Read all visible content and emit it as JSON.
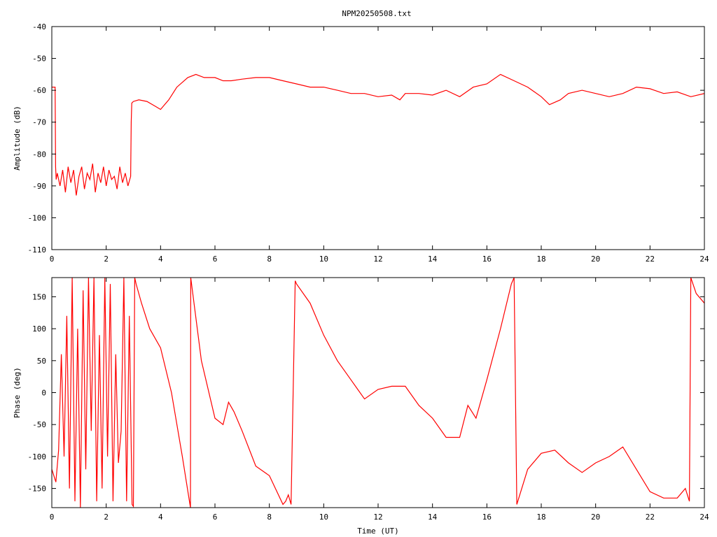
{
  "chart_data": [
    {
      "type": "line",
      "title": "NPM20250508.txt",
      "xlabel": "",
      "ylabel": "Amplitude (dB)",
      "xlim": [
        0,
        24
      ],
      "ylim": [
        -110,
        -40
      ],
      "x_ticks": [
        0,
        2,
        4,
        6,
        8,
        10,
        12,
        14,
        16,
        18,
        20,
        22,
        24
      ],
      "y_ticks": [
        -110,
        -100,
        -90,
        -80,
        -70,
        -60,
        -50,
        -40
      ],
      "grid": false,
      "color": "#ff0000",
      "series": [
        {
          "x": [
            0.0,
            0.1,
            0.12,
            0.14,
            0.16,
            0.2,
            0.3,
            0.4,
            0.5,
            0.6,
            0.7,
            0.8,
            0.9,
            1.0,
            1.1,
            1.2,
            1.3,
            1.4,
            1.5,
            1.6,
            1.7,
            1.8,
            1.9,
            2.0,
            2.1,
            2.2,
            2.3,
            2.4,
            2.5,
            2.6,
            2.7,
            2.8,
            2.9,
            2.92,
            2.94,
            3.0,
            3.2,
            3.5,
            3.8,
            4.0,
            4.3,
            4.6,
            5.0,
            5.3,
            5.6,
            6.0,
            6.3,
            6.6,
            7.0,
            7.5,
            8.0,
            8.5,
            9.0,
            9.5,
            10.0,
            10.5,
            11.0,
            11.5,
            12.0,
            12.5,
            12.8,
            13.0,
            13.5,
            14.0,
            14.5,
            15.0,
            15.5,
            16.0,
            16.5,
            17.0,
            17.5,
            18.0,
            18.3,
            18.7,
            19.0,
            19.5,
            20.0,
            20.5,
            21.0,
            21.5,
            22.0,
            22.5,
            23.0,
            23.5,
            24.0
          ],
          "y": [
            -59,
            -59,
            -59,
            -84,
            -88,
            -86,
            -90,
            -85,
            -92,
            -84,
            -89,
            -85,
            -93,
            -87,
            -84,
            -91,
            -86,
            -88,
            -83,
            -92,
            -86,
            -89,
            -84,
            -90,
            -85,
            -88,
            -87,
            -91,
            -84,
            -89,
            -86,
            -90,
            -87,
            -70,
            -64,
            -63.5,
            -63,
            -63.5,
            -65,
            -66,
            -63,
            -59,
            -56,
            -55,
            -56,
            -56,
            -57,
            -57,
            -56.5,
            -56,
            -56,
            -57,
            -58,
            -59,
            -59,
            -60,
            -61,
            -61,
            -62,
            -61.5,
            -63,
            -61,
            -61,
            -61.5,
            -60,
            -62,
            -59,
            -58,
            -55,
            -57,
            -59,
            -62,
            -64.5,
            -63,
            -61,
            -60,
            -61,
            -62,
            -61,
            -59,
            -59.5,
            -61,
            -60.5,
            -62,
            -61
          ]
        }
      ]
    },
    {
      "type": "line",
      "title": "",
      "xlabel": "Time (UT)",
      "ylabel": "Phase (deg)",
      "xlim": [
        0,
        24
      ],
      "ylim": [
        -180,
        180
      ],
      "x_ticks": [
        0,
        2,
        4,
        6,
        8,
        10,
        12,
        14,
        16,
        18,
        20,
        22,
        24
      ],
      "y_ticks": [
        -150,
        -100,
        -50,
        0,
        50,
        100,
        150
      ],
      "grid": false,
      "color": "#ff0000",
      "series": [
        {
          "x": [
            0.0,
            0.15,
            0.25,
            0.35,
            0.45,
            0.55,
            0.65,
            0.75,
            0.85,
            0.95,
            1.05,
            1.15,
            1.25,
            1.35,
            1.45,
            1.55,
            1.65,
            1.75,
            1.85,
            1.95,
            2.05,
            2.15,
            2.25,
            2.35,
            2.45,
            2.55,
            2.65,
            2.75,
            2.85,
            2.95,
            3.0,
            3.05,
            3.1,
            3.3,
            3.6,
            4.0,
            4.4,
            4.8,
            5.1,
            5.11,
            5.5,
            6.0,
            6.3,
            6.5,
            6.7,
            7.0,
            7.5,
            8.0,
            8.5,
            8.6,
            8.7,
            8.8,
            8.95,
            9.0,
            9.5,
            10.0,
            10.5,
            11.0,
            11.5,
            12.0,
            12.5,
            13.0,
            13.5,
            14.0,
            14.5,
            15.0,
            15.3,
            15.6,
            16.0,
            16.5,
            16.9,
            17.0,
            17.1,
            17.5,
            18.0,
            18.5,
            19.0,
            19.5,
            20.0,
            20.5,
            21.0,
            21.5,
            22.0,
            22.5,
            23.0,
            23.3,
            23.45,
            23.5,
            23.7,
            24.0
          ],
          "y": [
            -120,
            -140,
            -90,
            60,
            -100,
            120,
            -150,
            180,
            -170,
            100,
            -180,
            160,
            -120,
            180,
            -60,
            180,
            -170,
            90,
            -150,
            180,
            -100,
            170,
            -170,
            60,
            -110,
            -60,
            180,
            -170,
            120,
            -175,
            -178,
            180,
            170,
            140,
            100,
            70,
            0,
            -100,
            -180,
            180,
            50,
            -40,
            -50,
            -15,
            -30,
            -60,
            -115,
            -130,
            -175,
            -170,
            -160,
            -175,
            175,
            170,
            140,
            90,
            50,
            20,
            -10,
            5,
            10,
            10,
            -20,
            -40,
            -70,
            -70,
            -20,
            -40,
            20,
            100,
            170,
            180,
            -175,
            -120,
            -95,
            -90,
            -110,
            -125,
            -110,
            -100,
            -85,
            -120,
            -155,
            -165,
            -165,
            -150,
            -170,
            180,
            155,
            140
          ]
        }
      ]
    }
  ]
}
